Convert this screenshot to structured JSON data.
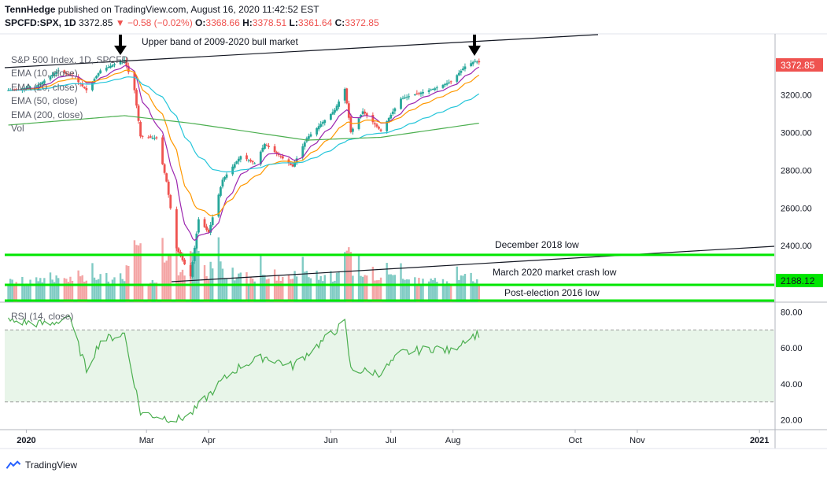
{
  "header": {
    "author": "TennHedge",
    "published": "published on TradingView.com, August 16, 2020 11:42:52 EST",
    "symbol": "SPCFD:SPX, 1D",
    "price": "3372.85",
    "change": "▼ −0.58 (−0.02%)",
    "o_label": "O:",
    "o_value": "3368.66",
    "h_label": "H:",
    "h_value": "3378.51",
    "l_label": "L:",
    "l_value": "3361.64",
    "c_label": "C:",
    "c_value": "3372.85"
  },
  "legend": {
    "title": "S&P 500 Index, 1D, SPCFD",
    "ema10": "EMA (10, close)",
    "ema20": "EMA (20, close)",
    "ema50": "EMA (50, close)",
    "ema200": "EMA (200, close)",
    "vol": "Vol",
    "rsi": "RSI (14, close)"
  },
  "annotations": {
    "upper_band": "Upper band of 2009-2020 bull market",
    "dec2018": "December 2018 low",
    "mar2020": "March 2020 market crash low",
    "post_election": "Post-election 2016 low"
  },
  "colors": {
    "up": "#26a69a",
    "down": "#ef5350",
    "ema10": "#9c27b0",
    "ema20": "#ff9800",
    "ema50": "#26c6da",
    "ema200": "#4caf50",
    "support": "#00e600",
    "rsi": "#4caf50",
    "rsi_band": "#e8f5e9",
    "price_label": "#ef5350",
    "support_label": "#00e600",
    "vol_up": "#80cbc4",
    "vol_down": "#f4a5a5"
  },
  "brand": {
    "name": "TradingView",
    "icon": "tradingview-logo-icon"
  },
  "chart_data": {
    "type": "candlestick",
    "price_axis_ticks": [
      "3200.00",
      "3000.00",
      "2800.00",
      "2600.00",
      "2400.00"
    ],
    "rsi_axis_ticks": [
      "80.00",
      "60.00",
      "40.00",
      "20.00"
    ],
    "time_axis_labels": [
      "2020",
      "Mar",
      "Apr",
      "Jun",
      "Jul",
      "Aug",
      "Oct",
      "Nov",
      "2021"
    ],
    "price_labels": {
      "last": "3372.85",
      "support": "2188.12"
    },
    "ylim": [
      2100,
      3520
    ],
    "rsi_ylim": [
      15,
      85
    ],
    "rsi_bands": [
      30,
      70
    ],
    "support_levels": [
      {
        "name": "December 2018 low",
        "value": 2351
      },
      {
        "name": "March 2020 market crash low",
        "value": 2192
      },
      {
        "name": "Post-election 2016 low",
        "value": 2084
      }
    ],
    "close_path": [
      [
        "2019-12-23",
        3225
      ],
      [
        "2020-01-06",
        3245
      ],
      [
        "2020-01-17",
        3330
      ],
      [
        "2020-01-24",
        3300
      ],
      [
        "2020-01-31",
        3225
      ],
      [
        "2020-02-07",
        3330
      ],
      [
        "2020-02-19",
        3386
      ],
      [
        "2020-02-24",
        3225
      ],
      [
        "2020-02-27",
        2980
      ],
      [
        "2020-03-06",
        2970
      ],
      [
        "2020-03-11",
        2740
      ],
      [
        "2020-03-16",
        2386
      ],
      [
        "2020-03-23",
        2237
      ],
      [
        "2020-03-27",
        2540
      ],
      [
        "2020-04-01",
        2470
      ],
      [
        "2020-04-08",
        2750
      ],
      [
        "2020-04-17",
        2875
      ],
      [
        "2020-04-24",
        2837
      ],
      [
        "2020-04-29",
        2940
      ],
      [
        "2020-05-13",
        2820
      ],
      [
        "2020-05-20",
        2970
      ],
      [
        "2020-06-03",
        3120
      ],
      [
        "2020-06-08",
        3232
      ],
      [
        "2020-06-11",
        3002
      ],
      [
        "2020-06-17",
        3113
      ],
      [
        "2020-06-26",
        3009
      ],
      [
        "2020-07-06",
        3180
      ],
      [
        "2020-07-23",
        3235
      ],
      [
        "2020-07-31",
        3271
      ],
      [
        "2020-08-07",
        3351
      ],
      [
        "2020-08-12",
        3380
      ],
      [
        "2020-08-14",
        3372.85
      ]
    ],
    "ema200_path": [
      [
        "2019-12-23",
        3040
      ],
      [
        "2020-02-19",
        3090
      ],
      [
        "2020-03-23",
        3050
      ],
      [
        "2020-05-20",
        2960
      ],
      [
        "2020-06-26",
        2975
      ],
      [
        "2020-08-14",
        3050
      ]
    ],
    "rsi_path": [
      [
        "2019-12-23",
        75
      ],
      [
        "2020-01-13",
        73
      ],
      [
        "2020-01-22",
        78
      ],
      [
        "2020-01-31",
        48
      ],
      [
        "2020-02-07",
        64
      ],
      [
        "2020-02-19",
        68
      ],
      [
        "2020-02-27",
        24
      ],
      [
        "2020-03-16",
        20
      ],
      [
        "2020-03-23",
        23
      ],
      [
        "2020-04-08",
        42
      ],
      [
        "2020-04-17",
        50
      ],
      [
        "2020-04-29",
        55
      ],
      [
        "2020-05-13",
        50
      ],
      [
        "2020-06-08",
        74
      ],
      [
        "2020-06-11",
        48
      ],
      [
        "2020-06-26",
        46
      ],
      [
        "2020-07-06",
        57
      ],
      [
        "2020-07-23",
        60
      ],
      [
        "2020-07-31",
        58
      ],
      [
        "2020-08-07",
        65
      ],
      [
        "2020-08-14",
        68
      ]
    ]
  }
}
